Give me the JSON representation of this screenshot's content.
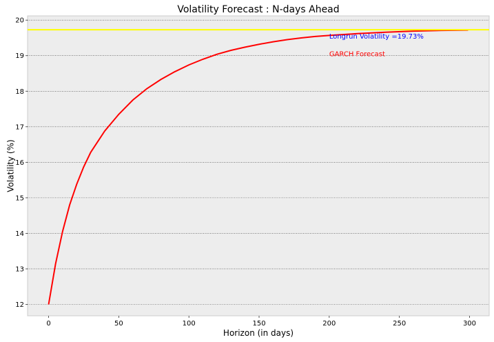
{
  "chart_data": {
    "type": "line",
    "title": "Volatility Forecast : N-days Ahead",
    "xlabel": "Horizon (in days)",
    "ylabel": "Volatility (%)",
    "xlim": [
      -15,
      314
    ],
    "ylim": [
      11.68,
      20.12
    ],
    "xticks": [
      0,
      50,
      100,
      150,
      200,
      250,
      300
    ],
    "yticks": [
      12,
      13,
      14,
      15,
      16,
      17,
      18,
      19,
      20
    ],
    "grid": "horizontal dotted",
    "series": [
      {
        "name": "GARCH Forecast",
        "color": "#ff0000",
        "x": [
          0,
          5,
          10,
          15,
          20,
          25,
          30,
          40,
          50,
          60,
          70,
          80,
          90,
          100,
          110,
          120,
          130,
          140,
          150,
          160,
          170,
          180,
          190,
          200,
          220,
          240,
          260,
          280,
          299
        ],
        "y": [
          12.0,
          13.15,
          14.06,
          14.8,
          15.38,
          15.87,
          16.28,
          16.88,
          17.35,
          17.75,
          18.07,
          18.33,
          18.55,
          18.74,
          18.9,
          19.04,
          19.15,
          19.24,
          19.32,
          19.39,
          19.45,
          19.5,
          19.54,
          19.57,
          19.62,
          19.66,
          19.69,
          19.71,
          19.72
        ]
      },
      {
        "name": "Longrun Volatility",
        "color": "#ffff00",
        "y": 19.73
      }
    ],
    "annotations": [
      {
        "text": "Longrun Volatility =19.73%",
        "x": 200,
        "y": 19.55,
        "color": "#0000ff"
      },
      {
        "text": "GARCH Forecast",
        "x": 200,
        "y": 19.05,
        "color": "#ff0000"
      }
    ]
  }
}
